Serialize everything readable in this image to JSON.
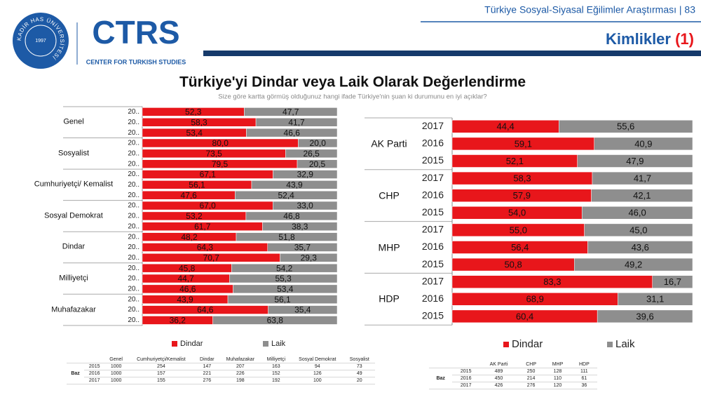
{
  "header": {
    "logo_seal": "KADİR HAS ÜNİVERSİTESİ",
    "logo_year": "1997",
    "logo": "CTRS",
    "logo_subtitle": "CENTER FOR TURKISH STUDIES",
    "report": "Türkiye Sosyal-Siyasal Eğilimler Araştırması | 83",
    "section": "Kimlikler",
    "section_number": "(1)"
  },
  "title": "Türkiye'yi Dindar veya Laik Olarak Değerlendirme",
  "subtitle": "Size göre kartta görmüş olduğunuz hangi ifade Türkiye'nin şuan ki durumunu en iyi açıklar?",
  "chart_data": [
    {
      "type": "stacked-bar",
      "orientation": "horizontal",
      "xlim": [
        0,
        100
      ],
      "groups": [
        "Genel",
        "Sosyalist",
        "Cumhuriyetçi/ Kemalist",
        "Sosyal Demokrat",
        "Dindar",
        "Milliyetçi",
        "Muhafazakar"
      ],
      "categories": [
        "20..",
        "20..",
        "20..",
        "20..",
        "20..",
        "20..",
        "20..",
        "20..",
        "20..",
        "20..",
        "20..",
        "20..",
        "20..",
        "20..",
        "20..",
        "20..",
        "20..",
        "20..",
        "20..",
        "20..",
        "20.."
      ],
      "series": [
        {
          "name": "Dindar",
          "color": "#e8161b",
          "values": [
            52.3,
            58.3,
            53.4,
            80.0,
            73.5,
            79.5,
            67.1,
            56.1,
            47.6,
            67.0,
            53.2,
            61.7,
            48.2,
            64.3,
            70.7,
            45.8,
            44.7,
            46.6,
            43.9,
            64.6,
            36.2
          ],
          "value_labels": [
            "52,3",
            "58,3",
            "53,4",
            "80,0",
            "73,5",
            "79,5",
            "67,1",
            "56,1",
            "47,6",
            "67,0",
            "53,2",
            "61,7",
            "48,2",
            "64,3",
            "70,7",
            "45,8",
            "44,7",
            "46,6",
            "43,9",
            "64,6",
            "36,2"
          ]
        },
        {
          "name": "Laik",
          "color": "#8e8e8e",
          "values": [
            47.7,
            41.7,
            46.6,
            20.0,
            26.5,
            20.5,
            32.9,
            43.9,
            52.4,
            33.0,
            46.8,
            38.3,
            51.8,
            35.7,
            29.3,
            54.2,
            55.3,
            53.4,
            56.1,
            35.4,
            63.8
          ],
          "value_labels": [
            "47,7",
            "41,7",
            "46,6",
            "20,0",
            "26,5",
            "20,5",
            "32,9",
            "43,9",
            "52,4",
            "33,0",
            "46,8",
            "38,3",
            "51,8",
            "35,7",
            "29,3",
            "54,2",
            "55,3",
            "53,4",
            "56,1",
            "35,4",
            "63,8"
          ]
        }
      ]
    },
    {
      "type": "stacked-bar",
      "orientation": "horizontal",
      "xlim": [
        0,
        100
      ],
      "groups": [
        "AK Parti",
        "CHP",
        "MHP",
        "HDP"
      ],
      "categories": [
        "2017",
        "2016",
        "2015",
        "2017",
        "2016",
        "2015",
        "2017",
        "2016",
        "2015",
        "2017",
        "2016",
        "2015"
      ],
      "series": [
        {
          "name": "Dindar",
          "color": "#e8161b",
          "values": [
            44.4,
            59.1,
            52.1,
            58.3,
            57.9,
            54.0,
            55.0,
            56.4,
            50.8,
            83.3,
            68.9,
            60.4
          ],
          "value_labels": [
            "44,4",
            "59,1",
            "52,1",
            "58,3",
            "57,9",
            "54,0",
            "55,0",
            "56,4",
            "50,8",
            "83,3",
            "68,9",
            "60,4"
          ]
        },
        {
          "name": "Laik",
          "color": "#8e8e8e",
          "values": [
            55.6,
            40.9,
            47.9,
            41.7,
            42.1,
            46.0,
            45.0,
            43.6,
            49.2,
            16.7,
            31.1,
            39.6
          ],
          "value_labels": [
            "55,6",
            "40,9",
            "47,9",
            "41,7",
            "42,1",
            "46,0",
            "45,0",
            "43,6",
            "49,2",
            "16,7",
            "31,1",
            "39,6"
          ]
        }
      ]
    }
  ],
  "tables": [
    {
      "label": "Baz",
      "columns": [
        "Genel",
        "Cumhuriyetçi/Kemalist",
        "Dindar",
        "Muhafazakar",
        "Milliyetçi",
        "Sosyal Demokrat",
        "Sosyalist"
      ],
      "rows": [
        [
          "2015",
          1000,
          254,
          147,
          207,
          163,
          94,
          73
        ],
        [
          "2016",
          1000,
          157,
          221,
          226,
          152,
          126,
          49
        ],
        [
          "2017",
          1000,
          155,
          276,
          198,
          192,
          100,
          20
        ]
      ]
    },
    {
      "label": "Baz",
      "columns": [
        "AK Parti",
        "CHP",
        "MHP",
        "HDP"
      ],
      "rows": [
        [
          "2015",
          489,
          250,
          128,
          111
        ],
        [
          "2016",
          450,
          214,
          110,
          61
        ],
        [
          "2017",
          426,
          276,
          120,
          36
        ]
      ]
    }
  ]
}
